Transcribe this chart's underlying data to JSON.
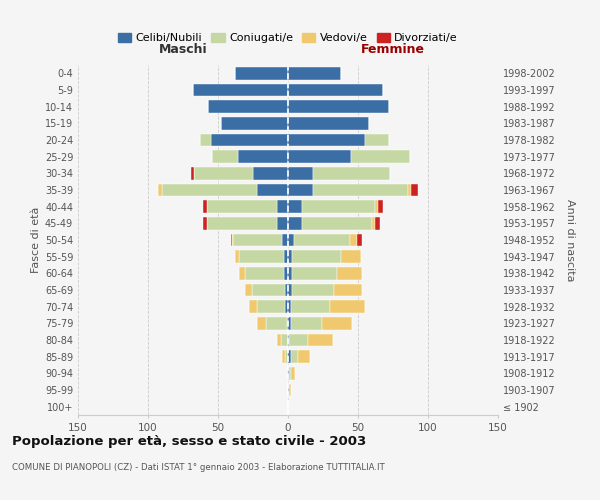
{
  "age_groups": [
    "100+",
    "95-99",
    "90-94",
    "85-89",
    "80-84",
    "75-79",
    "70-74",
    "65-69",
    "60-64",
    "55-59",
    "50-54",
    "45-49",
    "40-44",
    "35-39",
    "30-34",
    "25-29",
    "20-24",
    "15-19",
    "10-14",
    "5-9",
    "0-4"
  ],
  "birth_years": [
    "≤ 1902",
    "1903-1907",
    "1908-1912",
    "1913-1917",
    "1918-1922",
    "1923-1927",
    "1928-1932",
    "1933-1937",
    "1938-1942",
    "1943-1947",
    "1948-1952",
    "1953-1957",
    "1958-1962",
    "1963-1967",
    "1968-1972",
    "1973-1977",
    "1978-1982",
    "1983-1987",
    "1988-1992",
    "1993-1997",
    "1998-2002"
  ],
  "colors": {
    "celibi": "#3a6ea5",
    "coniugati": "#c5d8a4",
    "vedovi": "#f0c96e",
    "divorziati": "#cc2222"
  },
  "male": {
    "celibi": [
      0,
      0,
      0,
      0,
      0,
      1,
      2,
      2,
      3,
      3,
      4,
      8,
      8,
      22,
      25,
      36,
      55,
      48,
      57,
      68,
      38
    ],
    "coniugati": [
      0,
      0,
      0,
      2,
      5,
      15,
      20,
      24,
      28,
      32,
      35,
      50,
      50,
      68,
      42,
      18,
      8,
      0,
      0,
      0,
      0
    ],
    "vedovi": [
      0,
      0,
      1,
      2,
      3,
      6,
      6,
      5,
      4,
      3,
      1,
      0,
      0,
      3,
      0,
      0,
      0,
      0,
      0,
      0,
      0
    ],
    "divorziati": [
      0,
      0,
      0,
      0,
      0,
      0,
      0,
      0,
      0,
      0,
      1,
      3,
      3,
      0,
      2,
      0,
      0,
      0,
      0,
      0,
      0
    ]
  },
  "female": {
    "celibi": [
      0,
      1,
      1,
      2,
      1,
      2,
      2,
      3,
      3,
      3,
      4,
      10,
      10,
      18,
      18,
      45,
      55,
      58,
      72,
      68,
      38
    ],
    "coniugati": [
      0,
      0,
      1,
      5,
      13,
      22,
      28,
      30,
      32,
      35,
      40,
      50,
      52,
      68,
      55,
      42,
      17,
      0,
      0,
      0,
      0
    ],
    "vedovi": [
      0,
      1,
      3,
      9,
      18,
      22,
      25,
      20,
      18,
      14,
      5,
      2,
      2,
      2,
      0,
      0,
      0,
      0,
      0,
      0,
      0
    ],
    "divorziati": [
      0,
      0,
      0,
      0,
      0,
      0,
      0,
      0,
      0,
      0,
      4,
      4,
      4,
      5,
      0,
      0,
      0,
      0,
      0,
      0,
      0
    ]
  },
  "xlim": 150,
  "title": "Popolazione per età, sesso e stato civile - 2003",
  "subtitle": "COMUNE DI PIANOPOLI (CZ) - Dati ISTAT 1° gennaio 2003 - Elaborazione TUTTITALIA.IT",
  "ylabel_left": "Fasce di età",
  "ylabel_right": "Anni di nascita",
  "label_maschi": "Maschi",
  "label_femmine": "Femmine",
  "legend_labels": [
    "Celibi/Nubili",
    "Coniugati/e",
    "Vedovi/e",
    "Divorziati/e"
  ],
  "bg_color": "#f5f5f5",
  "grid_color": "#cccccc"
}
